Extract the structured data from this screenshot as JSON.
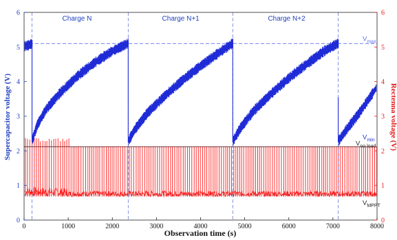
{
  "chart_data": {
    "type": "line",
    "xlabel": "Observation time (s)",
    "ylabel_left": "Supercapacitor voltage (V)",
    "ylabel_right": "Rectenna voltage (V)",
    "xlim": [
      0,
      8000
    ],
    "ylim_left": [
      0,
      6
    ],
    "ylim_right": [
      0,
      6
    ],
    "x_ticks": [
      "0",
      "1000",
      "2000",
      "3000",
      "4000",
      "5000",
      "6000",
      "7000",
      "8000"
    ],
    "y_ticks_left": [
      "0",
      "1",
      "2",
      "3",
      "4",
      "5",
      "6"
    ],
    "y_ticks_right": [
      "0",
      "1",
      "2",
      "3",
      "4",
      "5",
      "6"
    ],
    "grid": false,
    "colors": {
      "supercap": "#1f2bd6",
      "rectenna": "#ff1a1a",
      "left_axis": "#1f3fbf",
      "right_axis": "#e21b1b",
      "reference_dashed": "#5a6ef0",
      "no_load_line": "#333333",
      "divider": "#6a7ad8"
    },
    "charge_labels": [
      {
        "text": "Charge N",
        "x": 1200
      },
      {
        "text": "Charge N+1",
        "x": 3550
      },
      {
        "text": "Charge N+2",
        "x": 5950
      }
    ],
    "dividers_x": [
      180,
      2360,
      4730,
      7120
    ],
    "reference_lines": [
      {
        "label": "V",
        "subscript": "max",
        "y": 5.1
      },
      {
        "label": "V",
        "subscript": "min",
        "y": 2.27
      },
      {
        "label": "V",
        "subscript": "no load",
        "y": 2.12
      },
      {
        "label": "V",
        "subscript": "MPPT",
        "y": 0.72
      }
    ],
    "series": [
      {
        "name": "Supercapacitor voltage",
        "axis": "left",
        "band_width": 0.13,
        "points": [
          [
            0,
            5.02
          ],
          [
            100,
            5.05
          ],
          [
            180,
            5.1
          ],
          [
            185,
            2.3
          ],
          [
            300,
            2.75
          ],
          [
            500,
            3.2
          ],
          [
            800,
            3.65
          ],
          [
            1200,
            4.15
          ],
          [
            1600,
            4.55
          ],
          [
            2000,
            4.88
          ],
          [
            2350,
            5.1
          ],
          [
            2365,
            2.28
          ],
          [
            2500,
            2.6
          ],
          [
            2800,
            3.1
          ],
          [
            3200,
            3.6
          ],
          [
            3600,
            4.05
          ],
          [
            4000,
            4.45
          ],
          [
            4400,
            4.82
          ],
          [
            4720,
            5.1
          ],
          [
            4735,
            2.28
          ],
          [
            4900,
            2.65
          ],
          [
            5200,
            3.15
          ],
          [
            5600,
            3.65
          ],
          [
            6000,
            4.1
          ],
          [
            6400,
            4.5
          ],
          [
            6800,
            4.88
          ],
          [
            7110,
            5.1
          ],
          [
            7125,
            2.28
          ],
          [
            7300,
            2.6
          ],
          [
            7600,
            3.1
          ],
          [
            8000,
            3.85
          ]
        ]
      },
      {
        "name": "Rectenna voltage",
        "axis": "right",
        "pulse_top": 2.12,
        "base_low": 0.68,
        "base_high": 0.92,
        "pulse_spacing": 48
      }
    ]
  }
}
